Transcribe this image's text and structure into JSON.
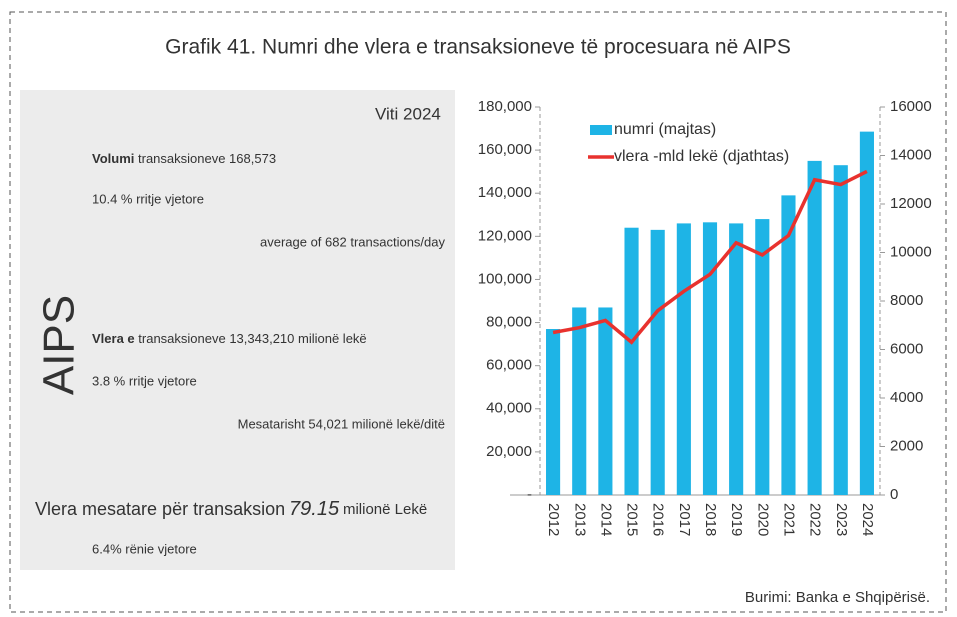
{
  "chart_data": {
    "type": "bar",
    "title": "Grafik 41. Numri dhe vlera e transaksioneve të procesuara në AIPS",
    "categories": [
      "2012",
      "2013",
      "2014",
      "2015",
      "2016",
      "2017",
      "2018",
      "2019",
      "2020",
      "2021",
      "2022",
      "2023",
      "2024"
    ],
    "series": [
      {
        "name": "numri (majtas)",
        "color": "#1eb4e6",
        "type": "bar",
        "values": [
          77000,
          87000,
          87000,
          124000,
          123000,
          126000,
          126500,
          126000,
          128000,
          139000,
          155000,
          153000,
          168573
        ]
      },
      {
        "name": "vlera -mld lekë (djathtas)",
        "color": "#e8322e",
        "type": "line",
        "axis": "y2",
        "values": [
          6700,
          6900,
          7200,
          6300,
          7600,
          8400,
          9100,
          10400,
          9900,
          10700,
          13000,
          12800,
          13343
        ]
      }
    ],
    "ylim": [
      0,
      180000
    ],
    "yticks": [
      {
        "value": 0,
        "label": "-"
      },
      {
        "value": 20000,
        "label": "20,000"
      },
      {
        "value": 40000,
        "label": "40,000"
      },
      {
        "value": 60000,
        "label": "60,000"
      },
      {
        "value": 80000,
        "label": "80,000"
      },
      {
        "value": 100000,
        "label": "100,000"
      },
      {
        "value": 120000,
        "label": "120,000"
      },
      {
        "value": 140000,
        "label": "140,000"
      },
      {
        "value": 160000,
        "label": "160,000"
      },
      {
        "value": 180000,
        "label": "180,000"
      }
    ],
    "y2lim": [
      0,
      16000
    ],
    "y2ticks": [
      0,
      2000,
      4000,
      6000,
      8000,
      10000,
      12000,
      14000,
      16000
    ],
    "source": "Burimi: Banka e Shqipërisë."
  },
  "panel": {
    "side_label": "AIPS",
    "heading": "Viti 2024",
    "volume": {
      "label": "Volumi",
      "text": "transaksioneve  168,573",
      "growth": "10.4 %  rritje vjetore",
      "average": "average of 682 transactions/day"
    },
    "value": {
      "label": "Vlera e",
      "text": "transaksioneve  13,343,210 milionë lekë",
      "growth": "3.8 %  rritje vjetore",
      "average": "Mesatarisht 54,021 milionë lekë/ditë"
    },
    "mean": {
      "label": "Vlera mesatare për transaksion",
      "number": "79.15",
      "unit": "milionë Lekë",
      "change": "6.4% rënie vjetore"
    }
  }
}
